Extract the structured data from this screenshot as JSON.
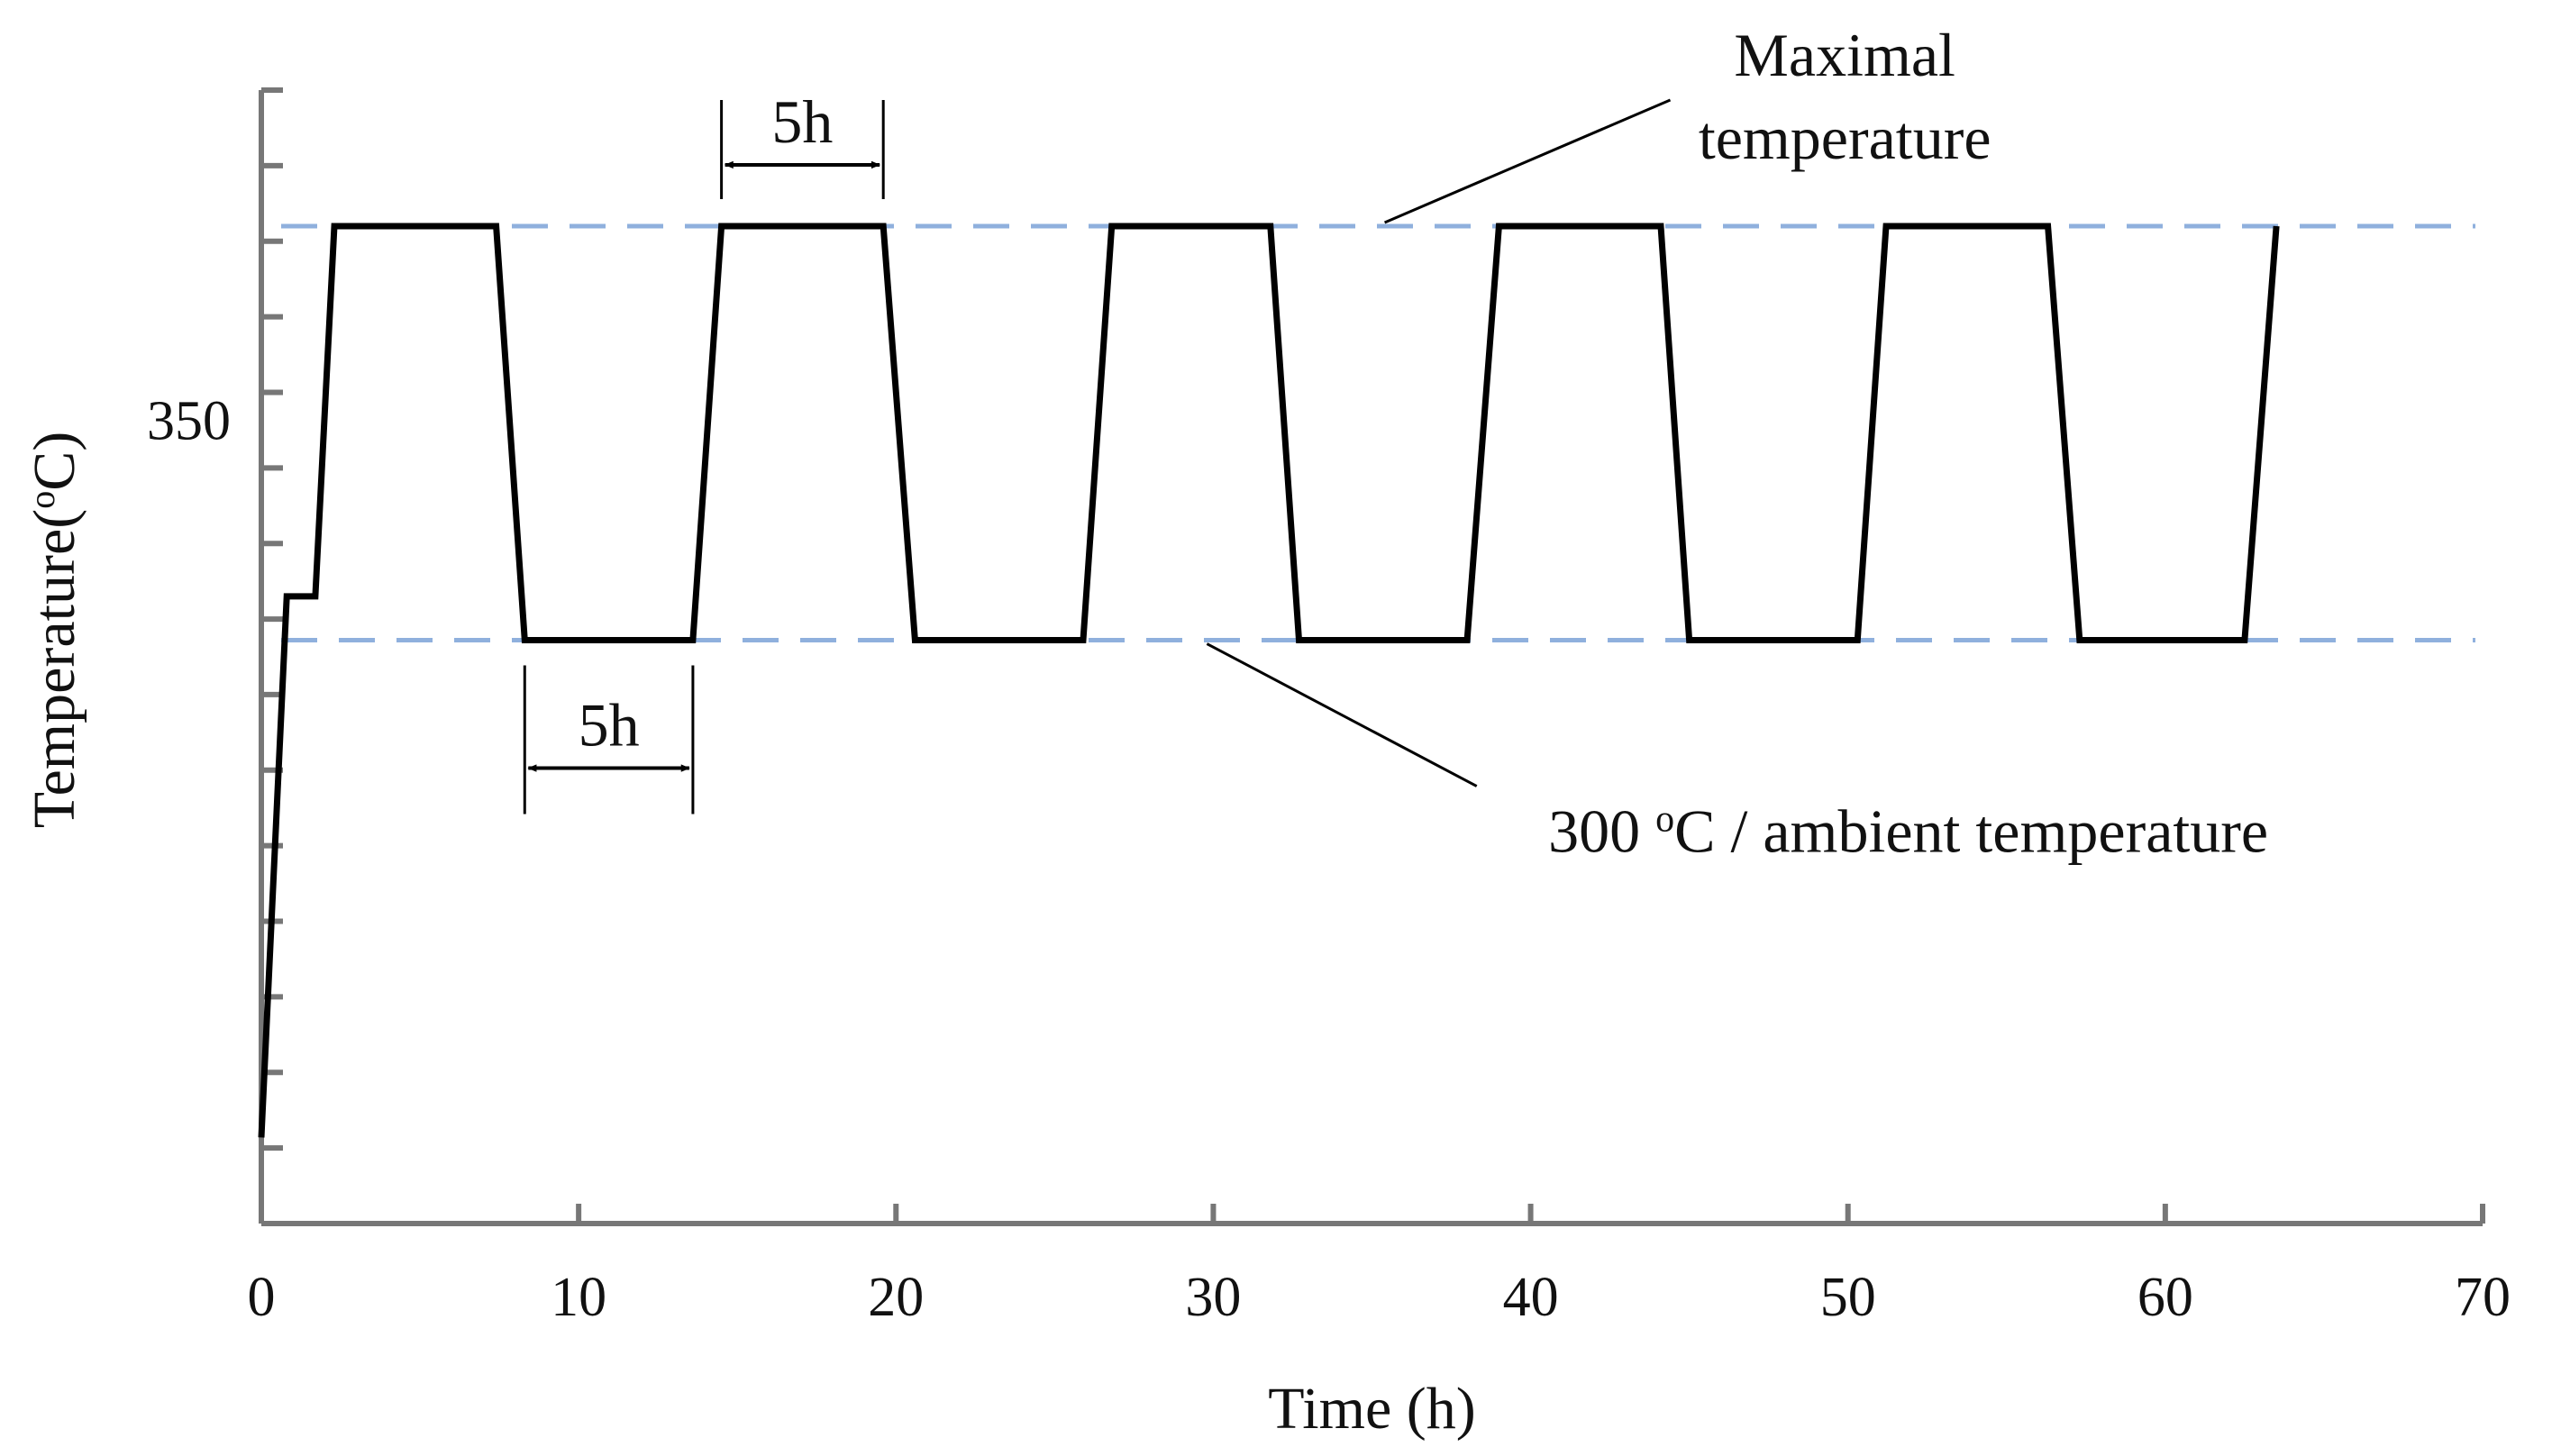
{
  "chart_data": {
    "type": "line",
    "title": "",
    "xlabel": "Time (h)",
    "ylabel": "Temperature(°C)",
    "xlim": [
      0,
      70
    ],
    "ylim": [
      300,
      375
    ],
    "x_ticks": [
      "0",
      "10",
      "20",
      "30",
      "40",
      "50",
      "60",
      "70"
    ],
    "y_ticks_labeled": [
      {
        "value": 350,
        "label": "350"
      }
    ],
    "y_tick_values": [
      305,
      310,
      315,
      320,
      325,
      330,
      335,
      340,
      345,
      350,
      355,
      360,
      365,
      370
    ],
    "colors": {
      "series": "#000000",
      "reference": "#8fb0dd",
      "axis": "#777777",
      "annotation": "#000000"
    },
    "series": [
      {
        "name": "Temperature profile",
        "x": [
          0,
          0.8,
          1.7,
          2.3,
          7.4,
          8.3,
          13.6,
          14.5,
          19.6,
          20.6,
          25.9,
          26.8,
          31.8,
          32.7,
          38.0,
          39.0,
          44.1,
          45.0,
          50.3,
          51.2,
          56.3,
          57.3,
          62.5,
          63.5
        ],
        "y": [
          305.7,
          341.5,
          341.5,
          366.0,
          366.0,
          338.6,
          338.6,
          366.0,
          366.0,
          338.6,
          338.6,
          366.0,
          366.0,
          338.6,
          338.6,
          366.0,
          366.0,
          338.6,
          338.6,
          366.0,
          366.0,
          338.6,
          338.6,
          366.0
        ]
      }
    ],
    "reference_lines": [
      {
        "name": "Maximal temperature",
        "y": 366.0,
        "style": "dashed"
      },
      {
        "name": "300 °C / ambient temperature",
        "y": 338.6,
        "style": "dashed"
      }
    ],
    "annotations": {
      "max_label_line1": "Maximal",
      "max_label_line2": "temperature",
      "min_label_prefix": "300 ",
      "min_label_degree": "o",
      "min_label_suffix": "C / ambient temperature",
      "dwell_top": {
        "label": "5h",
        "x_start": 14.5,
        "x_end": 19.6
      },
      "dwell_bottom": {
        "label": "5h",
        "x_start": 8.3,
        "x_end": 13.6
      }
    }
  }
}
